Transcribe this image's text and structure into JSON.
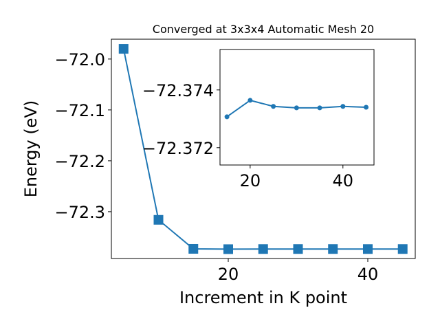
{
  "chart_data": [
    {
      "type": "line",
      "title": "Converged at 3x3x4 Automatic Mesh 20",
      "xlabel": "Increment in K point",
      "ylabel": "Energy (eV)",
      "x": [
        5,
        10,
        15,
        20,
        25,
        30,
        35,
        40,
        45
      ],
      "series": [
        {
          "color": "#1f77b4",
          "marker": "square",
          "values": [
            -71.98,
            -72.316,
            -72.37307,
            -72.37364,
            -72.37343,
            -72.37338,
            -72.37338,
            -72.37343,
            -72.3734
          ]
        }
      ],
      "xlim": [
        3.25,
        46.8
      ],
      "ylim": [
        -72.392,
        -71.961
      ],
      "xticks": [
        20,
        40
      ],
      "yticks": [
        {
          "value": -72.0,
          "label": "−72.0"
        },
        {
          "value": -72.1,
          "label": "−72.1"
        },
        {
          "value": -72.2,
          "label": "−72.2"
        },
        {
          "value": -72.3,
          "label": "−72.3"
        }
      ]
    },
    {
      "type": "line",
      "x": [
        15,
        20,
        25,
        30,
        35,
        40,
        45
      ],
      "series": [
        {
          "color": "#1f77b4",
          "marker": "circle",
          "values": [
            -72.37307,
            -72.37364,
            -72.37343,
            -72.37338,
            -72.37338,
            -72.37343,
            -72.3734
          ]
        }
      ],
      "xlim": [
        13.5,
        46.7
      ],
      "ylim": [
        -72.3714,
        -72.3754
      ],
      "xticks": [
        20,
        40
      ],
      "yticks": [
        {
          "value": -72.374,
          "label": "−72.374"
        },
        {
          "value": -72.372,
          "label": "−72.372"
        }
      ]
    }
  ]
}
